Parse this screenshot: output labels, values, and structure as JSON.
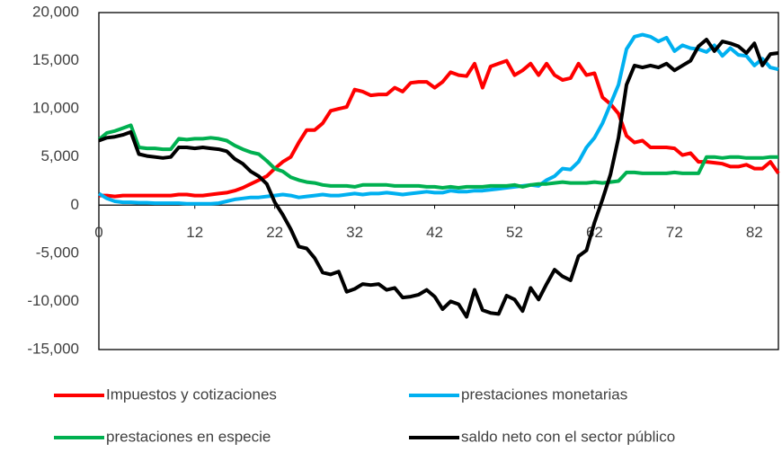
{
  "chart_data": {
    "type": "line",
    "x": [
      0,
      1,
      2,
      3,
      4,
      5,
      6,
      7,
      8,
      9,
      10,
      11,
      12,
      13,
      14,
      15,
      16,
      17,
      18,
      19,
      20,
      21,
      22,
      23,
      24,
      25,
      26,
      27,
      28,
      29,
      30,
      31,
      32,
      33,
      34,
      35,
      36,
      37,
      38,
      39,
      40,
      41,
      42,
      43,
      44,
      45,
      46,
      47,
      48,
      49,
      50,
      51,
      52,
      53,
      54,
      55,
      56,
      57,
      58,
      59,
      60,
      61,
      62,
      63,
      64,
      65,
      66,
      67,
      68,
      69,
      70,
      71,
      72,
      73,
      74,
      75,
      76,
      77,
      78,
      79,
      80,
      81,
      82,
      83,
      84,
      85
    ],
    "xlim": [
      0,
      85
    ],
    "xticks": [
      0,
      12,
      22,
      32,
      42,
      52,
      62,
      72,
      82
    ],
    "ylim": [
      -15000,
      20000
    ],
    "yticks": [
      {
        "value": -15000,
        "label": "-15,000"
      },
      {
        "value": -10000,
        "label": "-10,000"
      },
      {
        "value": -5000,
        "label": "-5,000"
      },
      0,
      {
        "value": 5000,
        "label": "5,000"
      },
      {
        "value": 10000,
        "label": "10,000"
      },
      {
        "value": 15000,
        "label": "15,000"
      },
      {
        "value": 20000,
        "label": "20,000"
      }
    ],
    "legend": "bottom",
    "series": [
      {
        "name": "Impuestos y cotizaciones",
        "color": "#ff0000",
        "values": [
          1000,
          1000,
          900,
          1000,
          1000,
          1000,
          1000,
          1000,
          1000,
          1000,
          1100,
          1100,
          1000,
          1000,
          1100,
          1200,
          1300,
          1500,
          1800,
          2200,
          2600,
          3000,
          3800,
          4500,
          5000,
          6500,
          7800,
          7800,
          8500,
          9800,
          10000,
          10200,
          12000,
          11800,
          11400,
          11500,
          11500,
          12200,
          11800,
          12700,
          12800,
          12800,
          12200,
          12800,
          13800,
          13500,
          13400,
          14700,
          12200,
          14400,
          14700,
          15000,
          13500,
          14000,
          14700,
          13500,
          14700,
          13500,
          13000,
          13200,
          14700,
          13500,
          13700,
          11200,
          10500,
          9500,
          7200,
          6500,
          6700,
          6000,
          6000,
          6000,
          5900,
          5200,
          5400,
          4500,
          4500,
          4400,
          4300,
          4000,
          4000,
          4200,
          3800,
          3800,
          4500,
          3300
        ]
      },
      {
        "name": "prestaciones monetarias",
        "color": "#00b0f0",
        "values": [
          1200,
          700,
          400,
          300,
          300,
          250,
          250,
          200,
          200,
          200,
          200,
          150,
          150,
          150,
          150,
          200,
          400,
          600,
          700,
          800,
          800,
          900,
          1000,
          1100,
          1000,
          800,
          900,
          1000,
          1100,
          1000,
          1000,
          1100,
          1200,
          1100,
          1200,
          1200,
          1300,
          1200,
          1100,
          1200,
          1300,
          1400,
          1300,
          1300,
          1500,
          1400,
          1400,
          1500,
          1500,
          1600,
          1700,
          1800,
          1900,
          2000,
          2100,
          2000,
          2600,
          3000,
          3800,
          3700,
          4500,
          6000,
          7000,
          8500,
          10500,
          12500,
          16200,
          17500,
          17700,
          17500,
          17000,
          17400,
          16000,
          16600,
          16300,
          16200,
          15900,
          16600,
          15500,
          16300,
          15600,
          15500,
          14500,
          15200,
          14300,
          14100
        ]
      },
      {
        "name": "prestaciones en especie",
        "color": "#00b050",
        "values": [
          6800,
          7500,
          7700,
          8000,
          8300,
          6000,
          5900,
          5900,
          5800,
          5800,
          6900,
          6800,
          6900,
          6900,
          7000,
          6900,
          6700,
          6200,
          5800,
          5500,
          5300,
          4600,
          3800,
          3500,
          2900,
          2600,
          2400,
          2300,
          2100,
          2000,
          2000,
          2000,
          1900,
          2100,
          2100,
          2100,
          2100,
          2000,
          2000,
          2000,
          2000,
          1900,
          1900,
          1800,
          1900,
          1800,
          1900,
          1900,
          1900,
          2000,
          2000,
          2000,
          2100,
          1900,
          2100,
          2200,
          2200,
          2300,
          2400,
          2300,
          2300,
          2300,
          2400,
          2300,
          2400,
          2500,
          3400,
          3400,
          3300,
          3300,
          3300,
          3300,
          3400,
          3300,
          3300,
          3300,
          5000,
          5000,
          4900,
          5000,
          5000,
          4900,
          4900,
          4900,
          5000,
          5000
        ]
      },
      {
        "name": "saldo neto con el sector público",
        "color": "#000000",
        "values": [
          6700,
          7000,
          7100,
          7300,
          7600,
          5300,
          5100,
          5000,
          4900,
          5000,
          6000,
          6000,
          5900,
          6000,
          5900,
          5800,
          5600,
          4800,
          4300,
          3500,
          3000,
          2200,
          300,
          -1000,
          -2500,
          -4300,
          -4500,
          -5500,
          -7000,
          -7200,
          -6900,
          -9000,
          -8700,
          -8200,
          -8300,
          -8200,
          -8800,
          -8600,
          -9600,
          -9500,
          -9300,
          -8800,
          -9500,
          -10800,
          -10000,
          -10300,
          -11600,
          -8800,
          -10900,
          -11200,
          -11300,
          -9400,
          -9800,
          -11000,
          -8600,
          -9800,
          -8200,
          -6700,
          -7400,
          -7800,
          -5300,
          -4700,
          -1800,
          600,
          3200,
          7000,
          12500,
          14500,
          14300,
          14500,
          14300,
          14700,
          14000,
          14500,
          15000,
          16500,
          17200,
          16000,
          17000,
          16800,
          16500,
          15800,
          16800,
          14500,
          15700,
          15800
        ]
      }
    ]
  }
}
